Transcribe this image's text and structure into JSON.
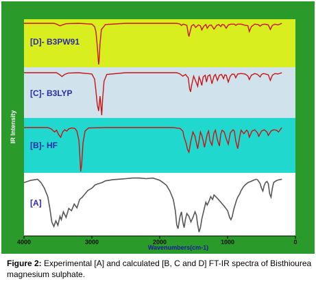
{
  "ylabel": "IR Intensity",
  "xlabel": "Wavenumbers(cm-1)",
  "caption": {
    "label": "Figure 2:",
    "text": " Experimental [A] and calculated [B, C and D] FT-IR spectra of Bisthiourea magnesium sulphate."
  },
  "colors": {
    "background": "#2a9a2a",
    "panel_D": "#d8ee1e",
    "panel_C": "#d0e2ec",
    "panel_B": "#21d8cf",
    "panel_A": "#ffffff",
    "calc_line": "#cc1111",
    "exp_line": "#555555",
    "label_text": "#2b2ba8"
  },
  "chart_data": {
    "type": "line",
    "xlim": [
      4000,
      0
    ],
    "x_ticks": [
      4000,
      3000,
      2000,
      1000,
      0
    ],
    "grid": false,
    "legend": "none",
    "series": [
      {
        "name": "[D]- B3PW91",
        "panel": "D",
        "x": [
          4000,
          3700,
          3560,
          3520,
          3470,
          3420,
          3380,
          3200,
          3000,
          2960,
          2940,
          2920,
          2905,
          2900,
          2895,
          2880,
          2860,
          2800,
          2500,
          2000,
          1750,
          1700,
          1680,
          1650,
          1600,
          1580,
          1570,
          1560,
          1530,
          1500,
          1470,
          1430,
          1400,
          1380,
          1350,
          1320,
          1300,
          1270,
          1240,
          1200,
          1160,
          1130,
          1100,
          1080,
          1050,
          1020,
          990,
          950,
          900,
          880,
          850,
          800,
          760,
          700,
          680,
          650,
          600,
          550,
          520,
          490,
          450,
          400,
          370,
          340,
          300,
          260,
          200
        ],
        "y": [
          0,
          0,
          0,
          0.02,
          0.06,
          0.03,
          0.01,
          0,
          0.02,
          0.08,
          0.2,
          0.55,
          0.9,
          1.0,
          0.95,
          0.5,
          0.15,
          0.03,
          0,
          0,
          0,
          0.02,
          0.05,
          0.02,
          0.05,
          0.25,
          0.32,
          0.25,
          0.06,
          0.03,
          0.1,
          0.04,
          0.06,
          0.16,
          0.07,
          0.03,
          0.12,
          0.05,
          0.04,
          0.14,
          0.05,
          0.03,
          0.08,
          0.03,
          0.04,
          0.12,
          0.04,
          0.02,
          0.02,
          0.05,
          0.02,
          0.02,
          0.04,
          0.06,
          0.2,
          0.08,
          0.02,
          0.03,
          0.07,
          0.03,
          0.02,
          0.04,
          0.15,
          0.05,
          0.02,
          0.04,
          0
        ]
      },
      {
        "name": "[C]- B3LYP",
        "panel": "C",
        "x": [
          4000,
          3700,
          3520,
          3480,
          3440,
          3400,
          3350,
          3200,
          3000,
          2960,
          2940,
          2920,
          2900,
          2880,
          2870,
          2855,
          2840,
          2820,
          2780,
          2500,
          2000,
          1750,
          1700,
          1660,
          1620,
          1580,
          1560,
          1545,
          1530,
          1500,
          1470,
          1440,
          1420,
          1400,
          1380,
          1360,
          1330,
          1310,
          1290,
          1260,
          1230,
          1200,
          1180,
          1150,
          1120,
          1090,
          1060,
          1040,
          1020,
          990,
          960,
          930,
          900,
          880,
          850,
          800,
          740,
          700,
          680,
          650,
          600,
          560,
          520,
          500,
          470,
          440,
          400,
          370,
          340,
          300,
          260,
          200
        ],
        "y": [
          0,
          0,
          0,
          0.04,
          0.09,
          0.04,
          0.01,
          0,
          0.03,
          0.15,
          0.42,
          0.75,
          0.9,
          0.55,
          0.72,
          1.0,
          0.6,
          0.2,
          0.04,
          0,
          0,
          0,
          0.03,
          0.08,
          0.04,
          0.12,
          0.38,
          0.45,
          0.3,
          0.08,
          0.2,
          0.32,
          0.1,
          0.18,
          0.3,
          0.1,
          0.06,
          0.22,
          0.08,
          0.05,
          0.26,
          0.08,
          0.04,
          0.18,
          0.06,
          0.04,
          0.14,
          0.05,
          0.06,
          0.22,
          0.08,
          0.03,
          0.04,
          0.12,
          0.03,
          0.02,
          0.03,
          0.08,
          0.16,
          0.06,
          0.02,
          0.04,
          0.1,
          0.04,
          0.02,
          0.03,
          0.05,
          0.18,
          0.06,
          0.02,
          0.03,
          0
        ]
      },
      {
        "name": "[B]- HF",
        "panel": "B",
        "x": [
          4000,
          3800,
          3650,
          3600,
          3550,
          3520,
          3490,
          3460,
          3430,
          3400,
          3370,
          3340,
          3300,
          3250,
          3220,
          3190,
          3175,
          3165,
          3150,
          3130,
          3100,
          3050,
          2800,
          2500,
          2000,
          1800,
          1700,
          1660,
          1640,
          1610,
          1590,
          1570,
          1540,
          1510,
          1480,
          1460,
          1440,
          1420,
          1400,
          1380,
          1360,
          1340,
          1300,
          1280,
          1260,
          1230,
          1200,
          1180,
          1150,
          1120,
          1100,
          1080,
          1050,
          1020,
          990,
          960,
          920,
          900,
          880,
          850,
          820,
          800,
          780,
          760,
          720,
          700,
          680,
          640,
          600,
          560,
          540,
          500,
          460,
          420,
          400,
          360,
          320,
          280,
          250,
          200
        ],
        "y": [
          0,
          0,
          0,
          0.03,
          0.1,
          0.06,
          0.16,
          0.22,
          0.1,
          0.05,
          0.08,
          0.03,
          0.01,
          0.02,
          0.08,
          0.3,
          0.7,
          1.0,
          0.85,
          0.35,
          0.08,
          0.01,
          0,
          0,
          0,
          0,
          0.02,
          0.08,
          0.22,
          0.36,
          0.5,
          0.56,
          0.3,
          0.1,
          0.2,
          0.35,
          0.48,
          0.3,
          0.1,
          0.18,
          0.3,
          0.45,
          0.15,
          0.08,
          0.3,
          0.4,
          0.12,
          0.06,
          0.28,
          0.42,
          0.15,
          0.06,
          0.1,
          0.25,
          0.38,
          0.12,
          0.05,
          0.08,
          0.3,
          0.48,
          0.2,
          0.06,
          0.1,
          0.14,
          0.06,
          0.09,
          0.22,
          0.08,
          0.05,
          0.12,
          0.2,
          0.08,
          0.05,
          0.1,
          0.18,
          0.08,
          0.05,
          0.06,
          0.1,
          0
        ]
      },
      {
        "name": "[A]",
        "panel": "A",
        "x": [
          4000,
          3900,
          3800,
          3750,
          3700,
          3650,
          3620,
          3590,
          3560,
          3530,
          3500,
          3470,
          3450,
          3420,
          3380,
          3340,
          3300,
          3260,
          3220,
          3180,
          3140,
          3100,
          3060,
          3000,
          2950,
          2900,
          2850,
          2800,
          2750,
          2700,
          2600,
          2500,
          2400,
          2300,
          2200,
          2100,
          2000,
          1950,
          1900,
          1850,
          1800,
          1770,
          1750,
          1730,
          1700,
          1680,
          1660,
          1640,
          1620,
          1600,
          1570,
          1540,
          1510,
          1480,
          1460,
          1440,
          1420,
          1400,
          1380,
          1350,
          1320,
          1300,
          1270,
          1250,
          1220,
          1200,
          1150,
          1100,
          1050,
          1000,
          970,
          950,
          930,
          910,
          890,
          870,
          850,
          820,
          800,
          770,
          740,
          700,
          660,
          620,
          600,
          580,
          560,
          540,
          520,
          500,
          480,
          460,
          440,
          420,
          400,
          380,
          360,
          340,
          320,
          300,
          270,
          240,
          200
        ],
        "y": [
          0.1,
          0.06,
          0.04,
          0.1,
          0.2,
          0.35,
          0.55,
          0.8,
          0.88,
          0.78,
          0.86,
          0.7,
          0.76,
          0.62,
          0.72,
          0.56,
          0.6,
          0.48,
          0.55,
          0.4,
          0.36,
          0.3,
          0.24,
          0.2,
          0.14,
          0.12,
          0.1,
          0.07,
          0.06,
          0.05,
          0.04,
          0.03,
          0.02,
          0.02,
          0.03,
          0.02,
          0.06,
          0.1,
          0.15,
          0.25,
          0.4,
          0.6,
          0.85,
          0.92,
          0.7,
          0.62,
          0.8,
          0.9,
          0.75,
          0.65,
          0.7,
          0.8,
          0.72,
          0.62,
          0.68,
          0.85,
          0.98,
          0.9,
          0.75,
          0.6,
          0.45,
          0.5,
          0.42,
          0.35,
          0.4,
          0.32,
          0.38,
          0.45,
          0.52,
          0.6,
          0.72,
          0.76,
          0.7,
          0.58,
          0.5,
          0.42,
          0.36,
          0.3,
          0.24,
          0.18,
          0.14,
          0.1,
          0.08,
          0.06,
          0.05,
          0.04,
          0.05,
          0.08,
          0.12,
          0.2,
          0.25,
          0.15,
          0.1,
          0.08,
          0.12,
          0.3,
          0.36,
          0.2,
          0.1,
          0.08,
          0.06,
          0.05,
          0.04
        ]
      }
    ]
  }
}
